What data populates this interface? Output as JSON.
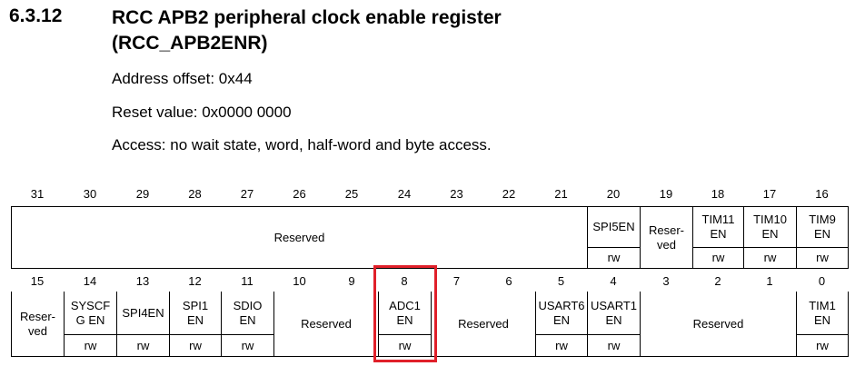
{
  "heading": {
    "number": "6.3.12",
    "title": "RCC APB2 peripheral clock enable register\n(RCC_APB2ENR)"
  },
  "meta": {
    "address_offset": "Address offset: 0x44",
    "reset_value": "Reset value: 0x0000 0000",
    "access": "Access: no wait state, word, half-word and byte access."
  },
  "upper": {
    "bit_numbers": [
      "31",
      "30",
      "29",
      "28",
      "27",
      "26",
      "25",
      "24",
      "23",
      "22",
      "21",
      "20",
      "19",
      "18",
      "17",
      "16"
    ],
    "fields": {
      "reserved_31_21": "Reserved",
      "spi5en": "SPI5EN",
      "reserved_19": "Reser-\nved",
      "tim11en": "TIM11\nEN",
      "tim10en": "TIM10\nEN",
      "tim9en": "TIM9\nEN"
    },
    "access": {
      "spi5en": "rw",
      "tim11en": "rw",
      "tim10en": "rw",
      "tim9en": "rw"
    }
  },
  "lower": {
    "bit_numbers": [
      "15",
      "14",
      "13",
      "12",
      "11",
      "10",
      "9",
      "8",
      "7",
      "6",
      "5",
      "4",
      "3",
      "2",
      "1",
      "0"
    ],
    "fields": {
      "reserved_15": "Reser-\nved",
      "syscfgen": "SYSCF\nG EN",
      "spi4en": "SPI4EN",
      "spi1en": "SPI1\nEN",
      "sdioen": "SDIO\nEN",
      "reserved_10_9": "Reserved",
      "adc1en": "ADC1\nEN",
      "reserved_7_6": "Reserved",
      "usart6en": "USART6\nEN",
      "usart1en": "USART1\nEN",
      "reserved_3_1": "Reserved",
      "tim1en": "TIM1\nEN"
    },
    "access": {
      "syscfgen": "rw",
      "spi4en": "rw",
      "spi1en": "rw",
      "sdioen": "rw",
      "adc1en": "rw",
      "usart6en": "rw",
      "usart1en": "rw",
      "tim1en": "rw"
    }
  },
  "highlight": {
    "bit": "8",
    "color": "#e0202a"
  }
}
